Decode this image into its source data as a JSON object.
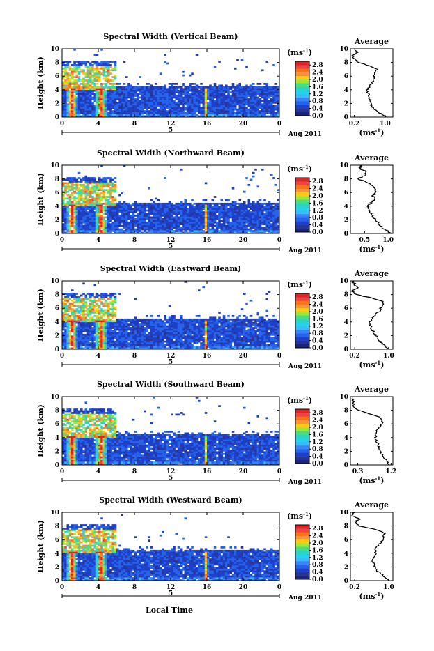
{
  "figure": {
    "xlabel": "Local Time",
    "date_label": "Aug 2011",
    "day_label": "5",
    "colorbar_unit_base": "(ms",
    "colorbar_unit_exp": "-1",
    "colorbar_unit_close": ")",
    "avg_title": "Average",
    "avg_xlabel_base": "(ms",
    "avg_xlabel_exp": "-1",
    "avg_xlabel_close": ")",
    "ylabel": "Height (km)",
    "colormap": [
      "#1a237e",
      "#283593",
      "#1e40c8",
      "#2563eb",
      "#3b82f6",
      "#38bdf8",
      "#22d3ee",
      "#2dd4bf",
      "#4ade80",
      "#a3e635",
      "#facc15",
      "#fb923c",
      "#f97316",
      "#ef4444",
      "#dc2626"
    ]
  },
  "chart_data": [
    {
      "type": "heatmap",
      "title": "Spectral Width (Vertical Beam)",
      "x_ticks": [
        "0",
        "4",
        "8",
        "12",
        "16",
        "20",
        "0"
      ],
      "x_range": [
        0,
        24
      ],
      "y_ticks": [
        "0",
        "2",
        "4",
        "6",
        "8",
        "10"
      ],
      "y_range": [
        0,
        10
      ],
      "colorbar_ticks": [
        "0.0",
        "0.4",
        "0.8",
        "1.2",
        "1.6",
        "2.0",
        "2.4",
        "2.8"
      ],
      "colorbar_range": [
        0.0,
        3.0
      ],
      "average_profile": {
        "x_ticks": [
          "0.2",
          "1.0"
        ],
        "x_range": [
          0.1,
          1.2
        ],
        "heights": [
          0,
          0.5,
          1,
          1.5,
          2,
          2.5,
          3,
          3.5,
          4,
          4.5,
          5,
          5.5,
          6,
          6.5,
          7,
          7.5,
          8,
          8.5,
          9,
          9.5,
          10
        ],
        "values": [
          1.05,
          0.9,
          0.75,
          0.65,
          0.62,
          0.6,
          0.58,
          0.55,
          0.55,
          0.6,
          0.65,
          0.7,
          0.72,
          0.75,
          0.8,
          0.6,
          0.3,
          0.2,
          0.15,
          0.3,
          0.2
        ]
      }
    },
    {
      "type": "heatmap",
      "title": "Spectral Width (Northward Beam)",
      "x_ticks": [
        "0",
        "4",
        "8",
        "12",
        "16",
        "20",
        "0"
      ],
      "x_range": [
        0,
        24
      ],
      "y_ticks": [
        "0",
        "2",
        "4",
        "6",
        "8",
        "10"
      ],
      "y_range": [
        0,
        10
      ],
      "colorbar_ticks": [
        "0.0",
        "0.4",
        "0.8",
        "1.2",
        "1.6",
        "2.0",
        "2.4",
        "2.8"
      ],
      "colorbar_range": [
        0.0,
        3.0
      ],
      "average_profile": {
        "x_ticks": [
          "0.5",
          "1.0"
        ],
        "x_range": [
          0.2,
          1.1
        ],
        "heights": [
          0,
          0.5,
          1,
          1.5,
          2,
          2.5,
          3,
          3.5,
          4,
          4.5,
          5,
          5.5,
          6,
          6.5,
          7,
          7.5,
          8,
          8.5,
          9,
          9.5,
          10
        ],
        "values": [
          1.05,
          0.95,
          0.85,
          0.8,
          0.72,
          0.68,
          0.62,
          0.6,
          0.58,
          0.65,
          0.7,
          0.68,
          0.75,
          0.72,
          0.65,
          0.55,
          0.35,
          0.5,
          0.55,
          0.4,
          0.45
        ]
      }
    },
    {
      "type": "heatmap",
      "title": "Spectral Width (Eastward Beam)",
      "x_ticks": [
        "0",
        "4",
        "8",
        "12",
        "16",
        "20",
        "0"
      ],
      "x_range": [
        0,
        24
      ],
      "y_ticks": [
        "0",
        "2",
        "4",
        "6",
        "8",
        "10"
      ],
      "y_range": [
        0,
        10
      ],
      "colorbar_ticks": [
        "0.0",
        "0.4",
        "0.8",
        "1.2",
        "1.6",
        "2.0",
        "2.4",
        "2.8"
      ],
      "colorbar_range": [
        0.0,
        3.0
      ],
      "average_profile": {
        "x_ticks": [
          "0.2",
          "1.0"
        ],
        "x_range": [
          0.1,
          1.1
        ],
        "heights": [
          0,
          0.5,
          1,
          1.5,
          2,
          2.5,
          3,
          3.5,
          4,
          4.5,
          5,
          5.5,
          6,
          6.5,
          7,
          7.5,
          8,
          8.5,
          9,
          9.5,
          10
        ],
        "values": [
          1.0,
          0.9,
          0.82,
          0.75,
          0.7,
          0.65,
          0.6,
          0.58,
          0.55,
          0.62,
          0.68,
          0.78,
          0.82,
          0.85,
          0.88,
          0.6,
          0.25,
          0.15,
          0.25,
          0.2,
          0.15
        ]
      }
    },
    {
      "type": "heatmap",
      "title": "Spectral Width (Southward Beam)",
      "x_ticks": [
        "0",
        "4",
        "8",
        "12",
        "16",
        "20",
        "0"
      ],
      "x_range": [
        0,
        24
      ],
      "y_ticks": [
        "0",
        "2",
        "4",
        "6",
        "8",
        "10"
      ],
      "y_range": [
        0,
        10
      ],
      "colorbar_ticks": [
        "0.0",
        "0.4",
        "0.8",
        "1.2",
        "1.6",
        "2.0",
        "2.4",
        "2.8"
      ],
      "colorbar_range": [
        0.0,
        3.0
      ],
      "average_profile": {
        "x_ticks": [
          "0.3",
          "1.2"
        ],
        "x_range": [
          0.1,
          1.25
        ],
        "heights": [
          0,
          0.5,
          1,
          1.5,
          2,
          2.5,
          3,
          3.5,
          4,
          4.5,
          5,
          5.5,
          6,
          6.5,
          7,
          7.5,
          8,
          8.5,
          9,
          9.5,
          10
        ],
        "values": [
          1.15,
          1.1,
          1.02,
          0.95,
          0.92,
          0.88,
          0.85,
          0.8,
          0.78,
          0.8,
          0.82,
          0.9,
          0.95,
          0.98,
          0.9,
          0.6,
          0.3,
          0.2,
          0.18,
          0.16,
          0.15
        ]
      }
    },
    {
      "type": "heatmap",
      "title": "Spectral Width (Westward Beam)",
      "x_ticks": [
        "0",
        "4",
        "8",
        "12",
        "16",
        "20",
        "0"
      ],
      "x_range": [
        0,
        24
      ],
      "y_ticks": [
        "0",
        "2",
        "4",
        "6",
        "8",
        "10"
      ],
      "y_range": [
        0,
        10
      ],
      "colorbar_ticks": [
        "0.0",
        "0.4",
        "0.8",
        "1.2",
        "1.6",
        "2.0",
        "2.4",
        "2.8"
      ],
      "colorbar_range": [
        0.0,
        3.0
      ],
      "average_profile": {
        "x_ticks": [
          "0.2",
          "1.0"
        ],
        "x_range": [
          0.1,
          1.1
        ],
        "heights": [
          0,
          0.5,
          1,
          1.5,
          2,
          2.5,
          3,
          3.5,
          4,
          4.5,
          5,
          5.5,
          6,
          6.5,
          7,
          7.5,
          8,
          8.5,
          9,
          9.5,
          10
        ],
        "values": [
          1.0,
          0.9,
          0.82,
          0.72,
          0.68,
          0.66,
          0.62,
          0.65,
          0.7,
          0.68,
          0.72,
          0.8,
          0.85,
          0.88,
          0.9,
          0.7,
          0.3,
          0.2,
          0.3,
          0.15,
          0.2
        ]
      }
    }
  ]
}
